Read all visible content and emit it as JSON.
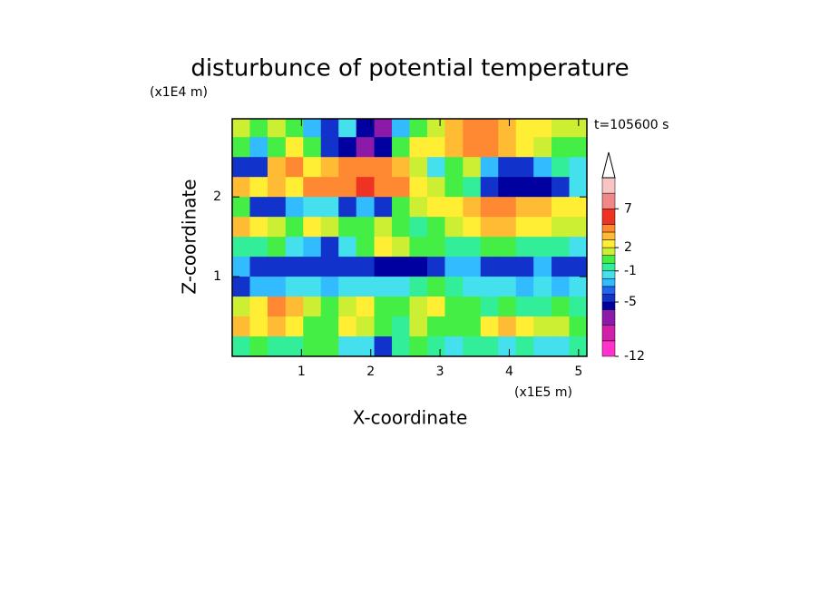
{
  "chart_data": {
    "type": "contour",
    "title": "disturbunce of potential temperature",
    "y_unit": "(x1E4 m)",
    "x_unit": "(x1E5 m)",
    "annotation": "t=105600 s",
    "xlabel": "X-coordinate",
    "ylabel": "Z-coordinate",
    "xlim": [
      0,
      5.12
    ],
    "ylim": [
      0,
      2.98
    ],
    "xticks": [
      1,
      2,
      3,
      4,
      5
    ],
    "yticks": [
      1,
      2
    ],
    "x": [
      0.13,
      0.38,
      0.64,
      0.9,
      1.15,
      1.41,
      1.66,
      1.92,
      2.18,
      2.43,
      2.69,
      2.94,
      3.2,
      3.46,
      3.71,
      3.97,
      4.22,
      4.48,
      4.74,
      4.99
    ],
    "y": [
      2.875,
      2.625,
      2.375,
      2.125,
      1.875,
      1.625,
      1.375,
      1.125,
      0.875,
      0.625,
      0.375,
      0.125
    ],
    "z": [
      [
        1.5,
        0.5,
        1.5,
        0.5,
        -2.5,
        -4.5,
        -1.5,
        -5.5,
        -7,
        -2.5,
        0.5,
        1.5,
        3.5,
        4.5,
        4.5,
        3.5,
        2.5,
        2.5,
        1.5,
        1.5
      ],
      [
        0.5,
        -2.5,
        0.5,
        2.5,
        0.5,
        -4.5,
        -5.5,
        -7,
        -5.5,
        0.5,
        2.5,
        2.5,
        3.5,
        4.5,
        4.5,
        3.5,
        2.5,
        1.5,
        0.5,
        0.5
      ],
      [
        -4.5,
        -4.5,
        3.5,
        4.5,
        2.5,
        3.5,
        4.5,
        4.5,
        4.5,
        3.5,
        1.5,
        -1.5,
        0.5,
        1.5,
        -2.5,
        -4.5,
        -4.5,
        -2.5,
        -0.5,
        -1.5
      ],
      [
        3.5,
        2.5,
        3.5,
        2.5,
        4.5,
        4.5,
        4.5,
        6,
        4.5,
        4.5,
        2.5,
        1.5,
        0.5,
        -0.5,
        -4.5,
        -5.5,
        -5.5,
        -5.5,
        -4.5,
        -1.5
      ],
      [
        0.5,
        -4.5,
        -4.5,
        -2.5,
        -1.5,
        -1.5,
        -4.5,
        -2.5,
        -4.5,
        0.5,
        1.5,
        2.5,
        2.5,
        3.5,
        4.5,
        4.5,
        3.5,
        3.5,
        2.5,
        2.5
      ],
      [
        3.5,
        2.5,
        1.5,
        0.5,
        2.5,
        1.5,
        0.5,
        0.5,
        1.5,
        0.5,
        -0.5,
        0.5,
        1.5,
        2.5,
        3.5,
        3.5,
        2.5,
        2.5,
        1.5,
        1.5
      ],
      [
        -0.5,
        -0.5,
        0.5,
        -1.5,
        -2.5,
        -4.5,
        -1.5,
        0.5,
        2.5,
        1.5,
        0.5,
        0.5,
        -0.5,
        -0.5,
        0.5,
        0.5,
        -0.5,
        -0.5,
        -0.5,
        -1.5
      ],
      [
        -2.5,
        -4.5,
        -4.5,
        -4.5,
        -4.5,
        -4.5,
        -4.5,
        -4.5,
        -5.5,
        -5.5,
        -5.5,
        -4.5,
        -2.5,
        -2.5,
        -4.5,
        -4.5,
        -4.5,
        -2.5,
        -4.5,
        -4.5
      ],
      [
        -4.5,
        -2.5,
        -2.5,
        -1.5,
        -1.5,
        -2.5,
        -1.5,
        -1.5,
        -1.5,
        -1.5,
        -0.5,
        0.5,
        -0.5,
        -1.5,
        -1.5,
        -1.5,
        -2.5,
        -1.5,
        -2.5,
        -1.5
      ],
      [
        1.5,
        2.5,
        4.5,
        3.5,
        1.5,
        0.5,
        1.5,
        2.5,
        0.5,
        0.5,
        1.5,
        2.5,
        0.5,
        0.5,
        -0.5,
        0.5,
        -0.5,
        -0.5,
        0.5,
        -0.5
      ],
      [
        3.5,
        2.5,
        3.5,
        2.5,
        0.5,
        0.5,
        2.5,
        1.5,
        0.5,
        -0.5,
        1.5,
        0.5,
        0.5,
        0.5,
        2.5,
        3.5,
        2.5,
        1.5,
        1.5,
        0.5
      ],
      [
        -0.5,
        0.5,
        -0.5,
        -0.5,
        0.5,
        0.5,
        -1.5,
        -1.5,
        -4.5,
        -0.5,
        0.5,
        -0.5,
        -1.5,
        -0.5,
        -0.5,
        -1.5,
        -0.5,
        -1.5,
        -1.5,
        -0.5
      ]
    ],
    "levels": [
      -12,
      -10,
      -8,
      -6,
      -5,
      -4,
      -3,
      -2,
      -1,
      0,
      1,
      2,
      3,
      4,
      5,
      7,
      9,
      11
    ],
    "colors": [
      "#ff33cc",
      "#d01fa8",
      "#8c1aa8",
      "#0000a0",
      "#1133cc",
      "#2266ee",
      "#33bbff",
      "#44e0ee",
      "#33ee99",
      "#44ee44",
      "#ccee33",
      "#ffee33",
      "#ffbb33",
      "#ff8833",
      "#ee3322",
      "#f08888",
      "#f8c4c4"
    ],
    "colorbar_ticks": [
      -12,
      -5,
      -1,
      2,
      7
    ]
  }
}
